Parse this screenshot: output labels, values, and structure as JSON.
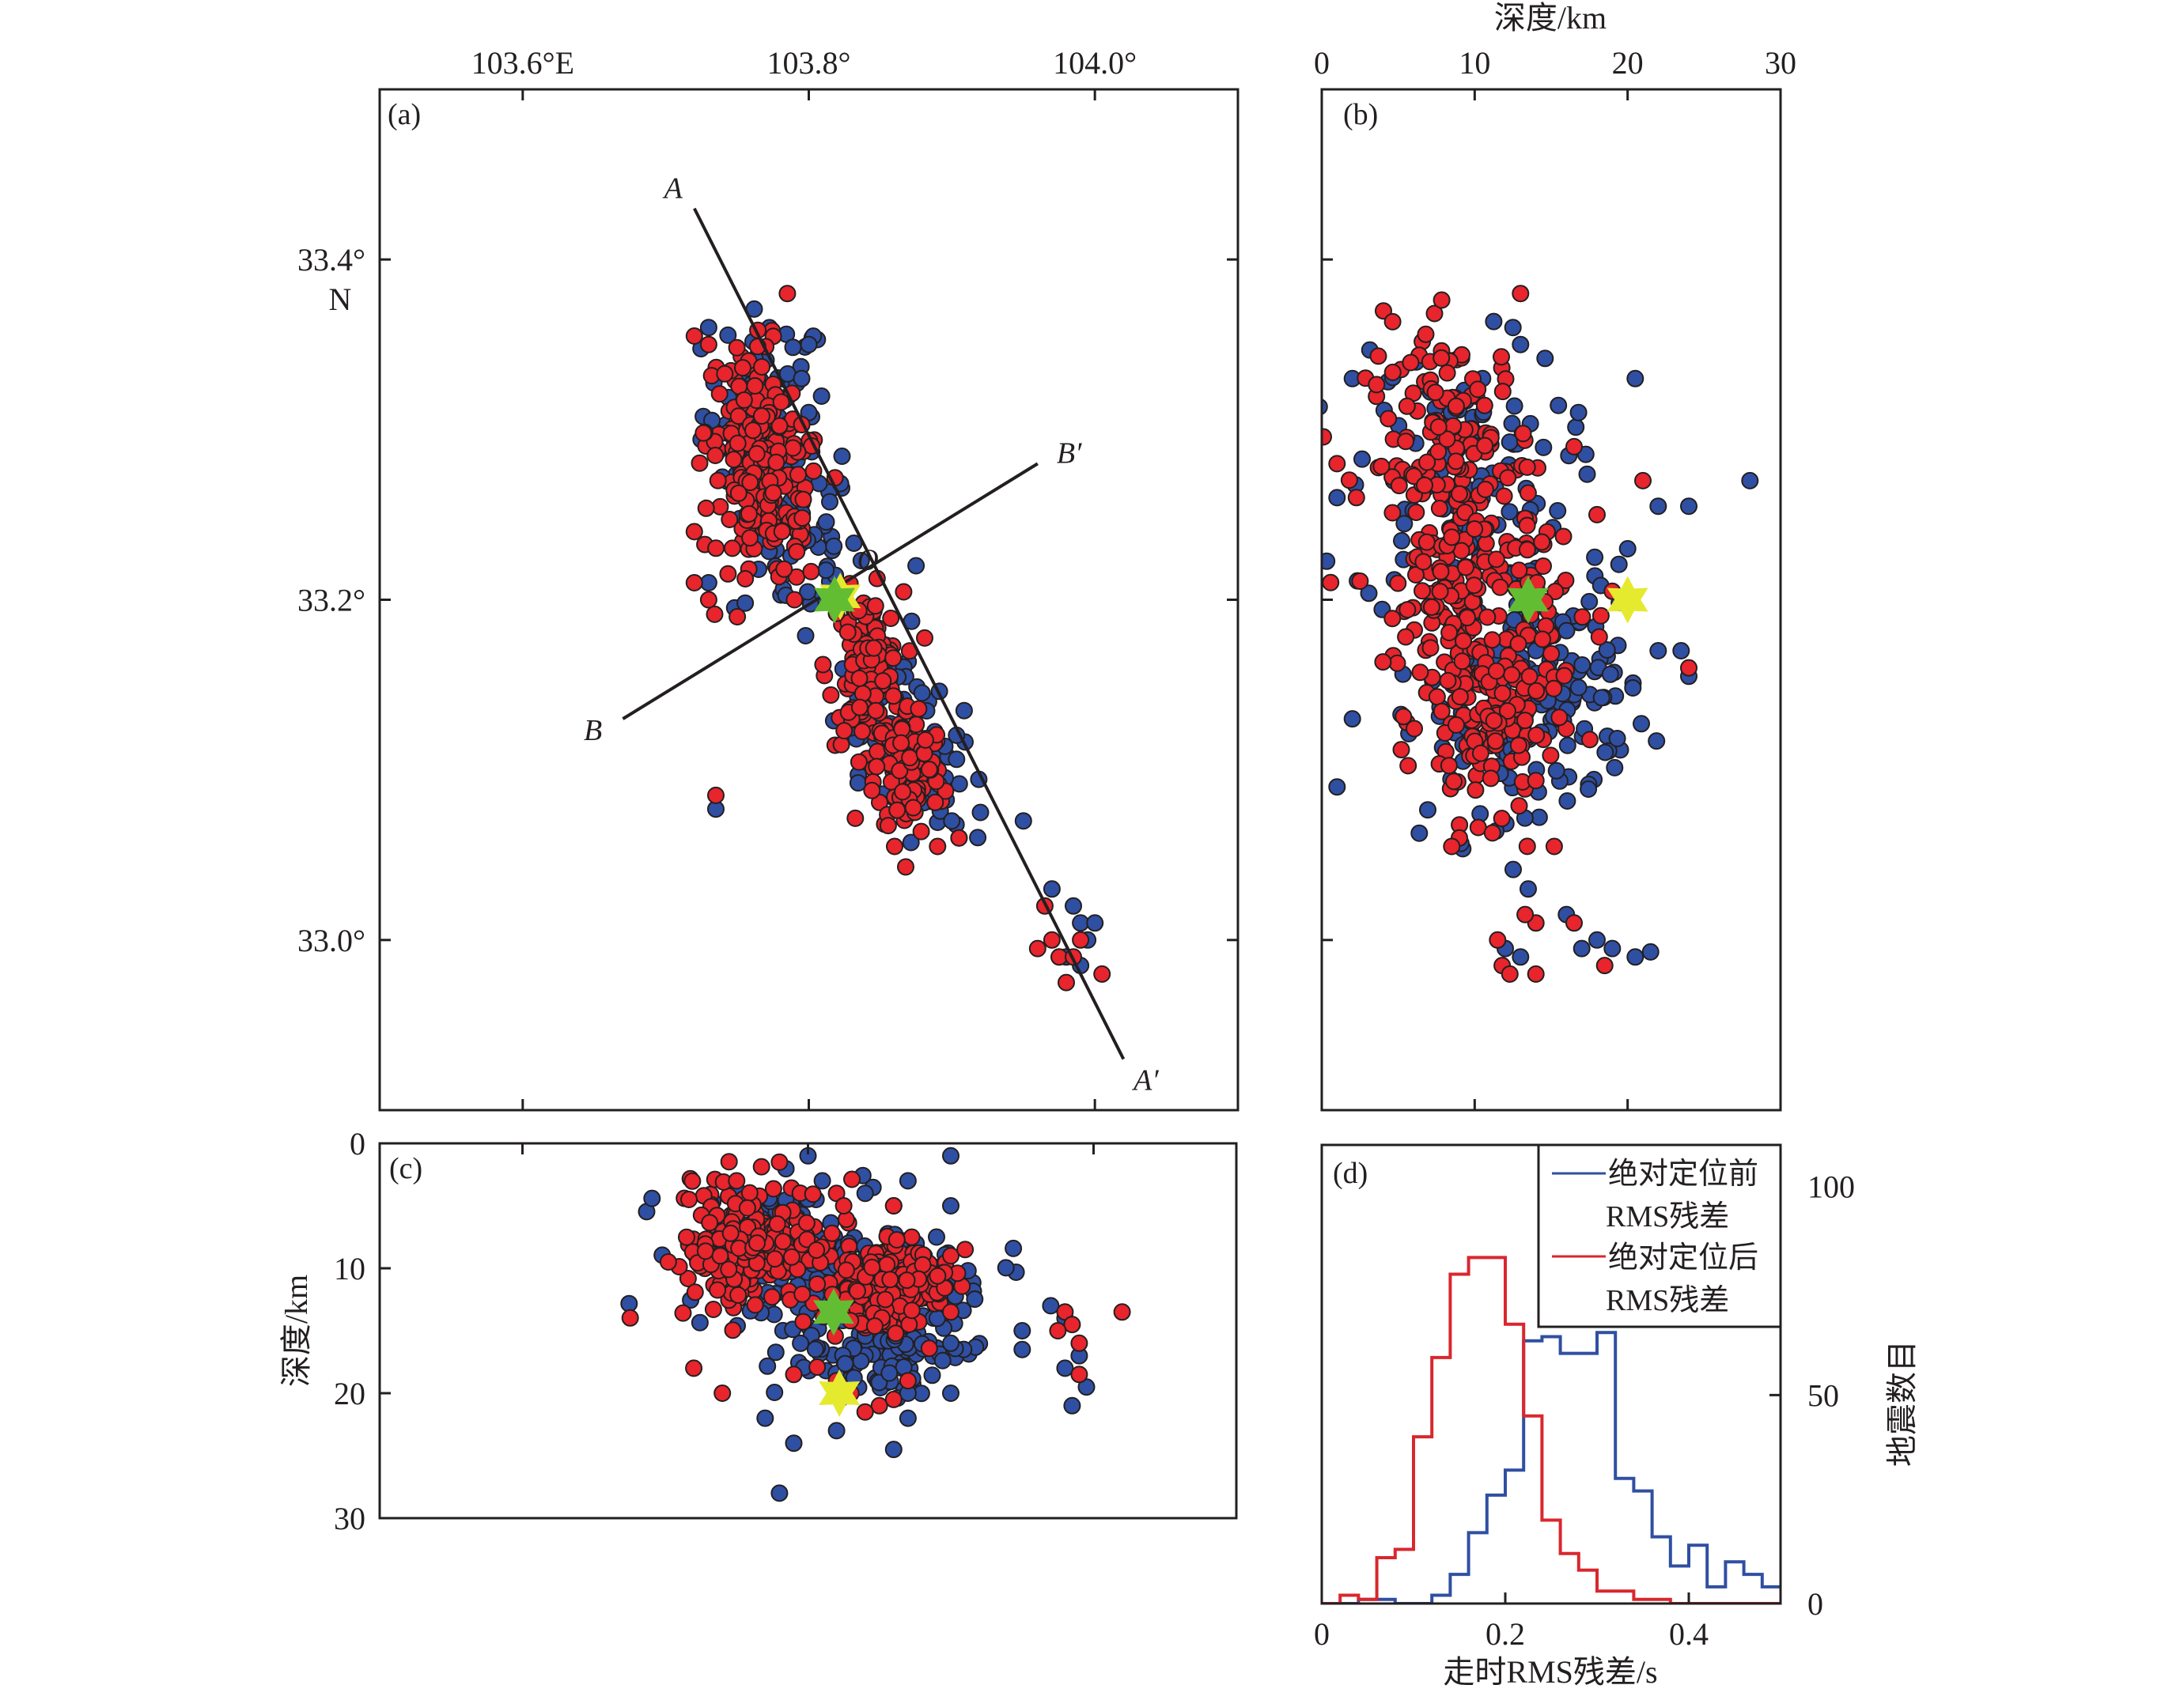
{
  "figure": {
    "colors": {
      "before": "#2f4fa2",
      "after": "#e8242c",
      "hist_before": "#2f4fa2",
      "hist_after": "#d9272e",
      "star_green": "#63bd32",
      "star_yellow": "#e5ea2e",
      "frame": "#231f20"
    }
  },
  "chart_data": [
    {
      "id": "a",
      "type": "scatter",
      "panel_label": "(a)",
      "title": "",
      "xlabel": "",
      "ylabel": "",
      "xlim": [
        103.5,
        104.1
      ],
      "ylim": [
        32.9,
        33.5
      ],
      "x_ticks": [
        103.6,
        103.8,
        104.0
      ],
      "x_tick_labels": [
        "103.6°E",
        "103.8°",
        "104.0°"
      ],
      "y_ticks": [
        33.0,
        33.2,
        33.4
      ],
      "y_tick_labels": [
        "33.0°",
        "33.2°",
        "33.4°"
      ],
      "y_tick_suffix_label": "N",
      "x_axis_position": "top",
      "profiles": [
        {
          "name": "A-A'",
          "start_label": "A",
          "end_label": "A′",
          "start": [
            103.72,
            33.43
          ],
          "end": [
            104.02,
            32.93
          ]
        },
        {
          "name": "B-B'",
          "start_label": "B",
          "end_label": "B′",
          "start": [
            103.67,
            33.13
          ],
          "end": [
            103.96,
            33.28
          ]
        }
      ],
      "origin_label": "O",
      "origin": [
        103.818,
        33.2
      ],
      "stars": [
        {
          "name": "mainshock-before",
          "color": "star_yellow",
          "x": 103.822,
          "y": 33.202
        },
        {
          "name": "mainshock-after",
          "color": "star_green",
          "x": 103.818,
          "y": 33.2
        }
      ],
      "series": [
        {
          "name": "绝对定位前",
          "color": "before",
          "clusters": [
            {
              "cx": 103.77,
              "cy": 33.31,
              "sx": 0.022,
              "sy": 0.03,
              "n": 70
            },
            {
              "cx": 103.79,
              "cy": 33.24,
              "sx": 0.022,
              "sy": 0.03,
              "n": 60
            },
            {
              "cx": 103.85,
              "cy": 33.15,
              "sx": 0.015,
              "sy": 0.025,
              "n": 60
            },
            {
              "cx": 103.88,
              "cy": 33.1,
              "sx": 0.014,
              "sy": 0.02,
              "n": 60
            }
          ],
          "points": [
            [
              103.73,
              33.36
            ],
            [
              103.8,
              33.35
            ],
            [
              103.795,
              33.33
            ],
            [
              103.73,
              33.21
            ],
            [
              103.8,
              33.31
            ],
            [
              103.875,
              33.22
            ],
            [
              103.95,
              33.07
            ],
            [
              103.735,
              33.077
            ],
            [
              103.97,
              33.03
            ],
            [
              103.985,
              33.02
            ],
            [
              103.99,
              33.01
            ],
            [
              103.995,
              33.0
            ],
            [
              103.98,
              32.99
            ],
            [
              103.99,
              32.985
            ],
            [
              104.0,
              33.01
            ],
            [
              103.9,
              33.07
            ],
            [
              103.92,
              33.075
            ],
            [
              103.905,
              33.06
            ]
          ]
        },
        {
          "name": "绝对定位后",
          "color": "after",
          "clusters": [
            {
              "cx": 103.76,
              "cy": 33.3,
              "sx": 0.016,
              "sy": 0.025,
              "n": 110
            },
            {
              "cx": 103.775,
              "cy": 33.255,
              "sx": 0.018,
              "sy": 0.025,
              "n": 110
            },
            {
              "cx": 103.84,
              "cy": 33.16,
              "sx": 0.013,
              "sy": 0.022,
              "n": 120
            },
            {
              "cx": 103.87,
              "cy": 33.1,
              "sx": 0.012,
              "sy": 0.02,
              "n": 110
            }
          ],
          "points": [
            [
              103.785,
              33.38
            ],
            [
              103.72,
              33.355
            ],
            [
              103.73,
              33.35
            ],
            [
              103.72,
              33.24
            ],
            [
              103.72,
              33.21
            ],
            [
              103.73,
              33.2
            ],
            [
              103.75,
              33.19
            ],
            [
              103.79,
              33.2
            ],
            [
              103.735,
              33.085
            ],
            [
              103.965,
              33.02
            ],
            [
              103.97,
              33.0
            ],
            [
              103.975,
              32.99
            ],
            [
              103.985,
              32.99
            ],
            [
              103.98,
              32.975
            ],
            [
              104.005,
              32.98
            ],
            [
              103.99,
              33.0
            ],
            [
              103.96,
              32.995
            ],
            [
              103.89,
              33.055
            ],
            [
              103.905,
              33.06
            ],
            [
              103.86,
              33.055
            ]
          ]
        }
      ]
    },
    {
      "id": "b",
      "type": "scatter",
      "panel_label": "(b)",
      "xlabel": "深度/km",
      "ylabel": "",
      "xlim": [
        0,
        30
      ],
      "ylim": [
        32.9,
        33.5
      ],
      "x_ticks": [
        0,
        10,
        20,
        30
      ],
      "x_tick_labels": [
        "0",
        "10",
        "20",
        "30"
      ],
      "y_ticks": [
        33.0,
        33.2,
        33.4
      ],
      "x_axis_position": "top",
      "stars": [
        {
          "name": "mainshock-after",
          "color": "star_green",
          "x": 13.5,
          "y": 33.2
        },
        {
          "name": "mainshock-before",
          "color": "star_yellow",
          "x": 20.0,
          "y": 33.2
        }
      ],
      "series": [
        {
          "name": "绝对定位前",
          "color": "before",
          "clusters": [
            {
              "cx": 9.0,
              "cy": 33.27,
              "sx": 3.5,
              "sy": 0.04,
              "n": 110
            },
            {
              "cx": 15.5,
              "cy": 33.15,
              "sx": 2.8,
              "sy": 0.035,
              "n": 110
            },
            {
              "cx": 11.0,
              "cy": 33.12,
              "sx": 3.0,
              "sy": 0.03,
              "n": 60
            }
          ],
          "points": [
            [
              28.0,
              33.27
            ],
            [
              24.0,
              33.255
            ],
            [
              20.5,
              33.33
            ],
            [
              2.0,
              33.33
            ],
            [
              1.0,
              33.26
            ],
            [
              1.0,
              33.09
            ],
            [
              2.0,
              33.13
            ],
            [
              20.0,
              33.23
            ],
            [
              22.0,
              33.17
            ],
            [
              23.5,
              33.17
            ],
            [
              24.0,
              33.155
            ],
            [
              22.0,
              33.255
            ],
            [
              13.5,
              33.03
            ],
            [
              13.0,
              32.99
            ],
            [
              12.0,
              32.995
            ],
            [
              16.0,
              33.015
            ],
            [
              17.0,
              32.995
            ],
            [
              19.0,
              32.995
            ],
            [
              20.5,
              32.99
            ],
            [
              21.5,
              32.993
            ],
            [
              18.0,
              33.0
            ],
            [
              12.5,
              33.36
            ],
            [
              13.0,
              33.35
            ]
          ]
        },
        {
          "name": "绝对定位后",
          "color": "after",
          "clusters": [
            {
              "cx": 8.5,
              "cy": 33.28,
              "sx": 2.8,
              "sy": 0.04,
              "n": 170
            },
            {
              "cx": 10.0,
              "cy": 33.2,
              "sx": 3.0,
              "sy": 0.03,
              "n": 110
            },
            {
              "cx": 11.0,
              "cy": 33.13,
              "sx": 2.2,
              "sy": 0.03,
              "n": 140
            }
          ],
          "points": [
            [
              13.0,
              33.38
            ],
            [
              1.0,
              33.28
            ],
            [
              19.0,
              33.205
            ],
            [
              24.0,
              33.16
            ],
            [
              21.0,
              33.27
            ],
            [
              18.0,
              33.25
            ],
            [
              16.5,
              33.29
            ],
            [
              11.5,
              33.0
            ],
            [
              14.0,
              33.01
            ],
            [
              13.3,
              33.015
            ],
            [
              16.5,
              33.01
            ],
            [
              11.8,
              32.985
            ],
            [
              12.3,
              32.98
            ],
            [
              14.0,
              32.98
            ],
            [
              18.5,
              32.985
            ],
            [
              15.2,
              33.055
            ],
            [
              9.0,
              33.06
            ],
            [
              8.5,
              33.055
            ]
          ]
        }
      ]
    },
    {
      "id": "c",
      "type": "scatter",
      "panel_label": "(c)",
      "xlabel": "",
      "ylabel": "深度/km",
      "xlim": [
        103.5,
        104.1
      ],
      "ylim": [
        30,
        0
      ],
      "x_ticks": [
        103.6,
        103.8,
        104.0
      ],
      "y_ticks": [
        0,
        10,
        20,
        30
      ],
      "y_tick_labels": [
        "0",
        "10",
        "20",
        "30"
      ],
      "stars": [
        {
          "name": "mainshock-after",
          "color": "star_green",
          "x": 103.818,
          "y": 13.5
        },
        {
          "name": "mainshock-before",
          "color": "star_yellow",
          "x": 103.822,
          "y": 20.0
        }
      ],
      "series": [
        {
          "name": "绝对定位前",
          "color": "before",
          "clusters": [
            {
              "cx": 103.78,
              "cy": 9.0,
              "sx": 0.035,
              "sy": 3.0,
              "n": 100
            },
            {
              "cx": 103.86,
              "cy": 11.0,
              "sx": 0.03,
              "sy": 2.5,
              "n": 80
            },
            {
              "cx": 103.85,
              "cy": 17.0,
              "sx": 0.03,
              "sy": 1.6,
              "n": 110
            }
          ],
          "points": [
            [
              103.8,
              1.0
            ],
            [
              103.9,
              1.0
            ],
            [
              103.81,
              3.0
            ],
            [
              103.87,
              3.0
            ],
            [
              103.89,
              7.5
            ],
            [
              103.86,
              5.0
            ],
            [
              103.84,
              4.0
            ],
            [
              103.9,
              5.0
            ],
            [
              103.78,
              28.0
            ],
            [
              103.79,
              24.0
            ],
            [
              103.77,
              22.0
            ],
            [
              103.82,
              23.0
            ],
            [
              103.86,
              24.5
            ],
            [
              103.87,
              22.0
            ],
            [
              103.9,
              16.0
            ],
            [
              103.95,
              15.0
            ],
            [
              103.97,
              13.0
            ],
            [
              103.98,
              14.0
            ],
            [
              103.99,
              17.0
            ],
            [
              103.985,
              21.0
            ],
            [
              103.995,
              19.5
            ],
            [
              103.98,
              18.0
            ],
            [
              103.95,
              16.5
            ],
            [
              103.87,
              20.0
            ],
            [
              103.9,
              20.0
            ]
          ]
        },
        {
          "name": "绝对定位后",
          "color": "after",
          "clusters": [
            {
              "cx": 103.76,
              "cy": 8.5,
              "sx": 0.025,
              "sy": 2.6,
              "n": 210
            },
            {
              "cx": 103.85,
              "cy": 11.5,
              "sx": 0.022,
              "sy": 1.8,
              "n": 220
            }
          ],
          "points": [
            [
              103.78,
              1.5
            ],
            [
              103.75,
              3.0
            ],
            [
              103.82,
              4.0
            ],
            [
              103.825,
              5.0
            ],
            [
              103.86,
              5.0
            ],
            [
              103.9,
              9.0
            ],
            [
              103.91,
              8.5
            ],
            [
              103.9,
              13.5
            ],
            [
              103.72,
              18.0
            ],
            [
              103.74,
              20.0
            ],
            [
              103.79,
              18.5
            ],
            [
              103.82,
              19.0
            ],
            [
              103.83,
              20.0
            ],
            [
              103.85,
              21.0
            ],
            [
              103.86,
              20.5
            ],
            [
              103.84,
              21.5
            ],
            [
              103.87,
              19.0
            ],
            [
              103.98,
              13.5
            ],
            [
              103.985,
              14.5
            ],
            [
              103.975,
              15.0
            ],
            [
              103.99,
              16.0
            ],
            [
              104.02,
              13.5
            ],
            [
              103.99,
              18.5
            ]
          ]
        }
      ]
    },
    {
      "id": "d",
      "type": "histogram",
      "panel_label": "(d)",
      "xlabel": "走时RMS残差/s",
      "ylabel": "地震数目",
      "xlim": [
        0,
        0.5
      ],
      "ylim": [
        0,
        110
      ],
      "x_ticks": [
        0,
        0.2,
        0.4
      ],
      "x_tick_labels": [
        "0",
        "0.2",
        "0.4"
      ],
      "y_ticks": [
        0,
        50,
        100
      ],
      "y_tick_labels": [
        "0",
        "50",
        "100"
      ],
      "y_axis_position": "right",
      "bin_width": 0.02,
      "bin_edges_start": 0,
      "legend_position": "top-right",
      "series": [
        {
          "name": "绝对定位前RMS残差",
          "legend_lines": [
            "绝对定位前",
            "RMS残差"
          ],
          "color": "hist_before",
          "counts": [
            0,
            0,
            1,
            1,
            0,
            0,
            2,
            7,
            17,
            26,
            32,
            63,
            64,
            60,
            60,
            65,
            30,
            27,
            16,
            9,
            14,
            4,
            10,
            7,
            4
          ]
        },
        {
          "name": "绝对定位后RMS残差",
          "legend_lines": [
            "绝对定位后",
            "RMS残差"
          ],
          "color": "hist_after",
          "counts": [
            0,
            2,
            1,
            11,
            13,
            40,
            59,
            79,
            83,
            83,
            67,
            45,
            20,
            12,
            8,
            3,
            3,
            1,
            1,
            0,
            0,
            0,
            0,
            0,
            0
          ]
        }
      ]
    }
  ]
}
